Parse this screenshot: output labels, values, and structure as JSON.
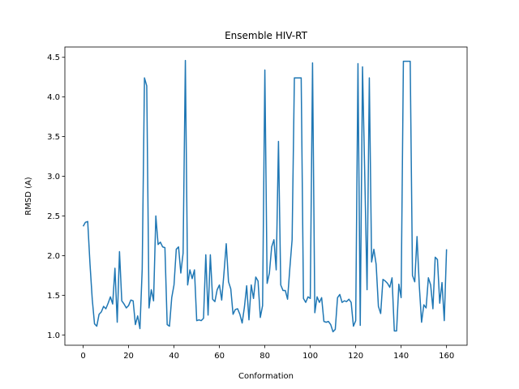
{
  "chart_data": {
    "type": "line",
    "title": "Ensemble HIV-RT",
    "xlabel": "Conformation",
    "ylabel": "RMSD (A)",
    "x": [
      0,
      1,
      2,
      3,
      4,
      5,
      6,
      7,
      8,
      9,
      10,
      11,
      12,
      13,
      14,
      15,
      16,
      17,
      18,
      19,
      20,
      21,
      22,
      23,
      24,
      25,
      26,
      27,
      28,
      29,
      30,
      31,
      32,
      33,
      34,
      35,
      36,
      37,
      38,
      39,
      40,
      41,
      42,
      43,
      44,
      45,
      46,
      47,
      48,
      49,
      50,
      51,
      52,
      53,
      54,
      55,
      56,
      57,
      58,
      59,
      60,
      61,
      62,
      63,
      64,
      65,
      66,
      67,
      68,
      69,
      70,
      71,
      72,
      73,
      74,
      75,
      76,
      77,
      78,
      79,
      80,
      81,
      82,
      83,
      84,
      85,
      86,
      87,
      88,
      89,
      90,
      91,
      92,
      93,
      94,
      95,
      96,
      97,
      98,
      99,
      100,
      101,
      102,
      103,
      104,
      105,
      106,
      107,
      108,
      109,
      110,
      111,
      112,
      113,
      114,
      115,
      116,
      117,
      118,
      119,
      120,
      121,
      122,
      123,
      124,
      125,
      126,
      127,
      128,
      129,
      130,
      131,
      132,
      133,
      134,
      135,
      136,
      137,
      138,
      139,
      140,
      141,
      142,
      143,
      144,
      145,
      146,
      147,
      148,
      149,
      150,
      151,
      152,
      153,
      154,
      155,
      156,
      157,
      158,
      159,
      160
    ],
    "series": [
      {
        "color": "#1f77b4",
        "values": [
          2.37,
          2.42,
          2.43,
          1.9,
          1.45,
          1.14,
          1.11,
          1.26,
          1.29,
          1.36,
          1.33,
          1.4,
          1.48,
          1.39,
          1.84,
          1.16,
          2.05,
          1.43,
          1.39,
          1.34,
          1.37,
          1.44,
          1.43,
          1.13,
          1.24,
          1.08,
          1.83,
          4.24,
          4.14,
          1.34,
          1.57,
          1.43,
          2.5,
          2.14,
          2.17,
          2.11,
          2.1,
          1.13,
          1.11,
          1.47,
          1.63,
          2.08,
          2.11,
          1.78,
          2.03,
          4.46,
          1.63,
          1.82,
          1.71,
          1.82,
          1.18,
          1.19,
          1.18,
          1.21,
          2.01,
          1.25,
          2.01,
          1.45,
          1.42,
          1.57,
          1.63,
          1.44,
          1.78,
          2.15,
          1.67,
          1.58,
          1.26,
          1.32,
          1.33,
          1.26,
          1.15,
          1.35,
          1.62,
          1.19,
          1.63,
          1.46,
          1.73,
          1.68,
          1.22,
          1.37,
          4.34,
          1.65,
          1.78,
          2.11,
          2.2,
          1.82,
          3.44,
          1.63,
          1.56,
          1.56,
          1.45,
          1.84,
          2.2,
          4.24,
          4.24,
          4.24,
          4.24,
          1.46,
          1.41,
          1.48,
          1.46,
          4.43,
          1.28,
          1.48,
          1.41,
          1.47,
          1.17,
          1.16,
          1.17,
          1.13,
          1.04,
          1.07,
          1.47,
          1.51,
          1.41,
          1.43,
          1.42,
          1.45,
          1.41,
          1.11,
          1.18,
          4.42,
          1.12,
          4.38,
          3.0,
          1.57,
          4.24,
          1.92,
          2.08,
          1.89,
          1.36,
          1.27,
          1.7,
          1.68,
          1.65,
          1.6,
          1.72,
          1.05,
          1.05,
          1.64,
          1.47,
          4.45,
          4.45,
          4.45,
          4.45,
          1.75,
          1.67,
          2.24,
          1.62,
          1.16,
          1.38,
          1.34,
          1.72,
          1.63,
          1.33,
          1.98,
          1.95,
          1.4,
          1.66,
          1.18,
          2.08
        ]
      }
    ],
    "xlim": [
      -8.05,
      169.05
    ],
    "ylim": [
      0.87,
      4.63
    ],
    "xticks": [
      0,
      20,
      40,
      60,
      80,
      100,
      120,
      140,
      160
    ],
    "yticks": [
      {
        "value": 1.0,
        "label": "1.0"
      },
      1.5,
      {
        "value": 2.0,
        "label": "2.0"
      },
      2.5,
      {
        "value": 3.0,
        "label": "3.0"
      },
      3.5,
      {
        "value": 4.0,
        "label": "4.0"
      },
      4.5
    ]
  }
}
